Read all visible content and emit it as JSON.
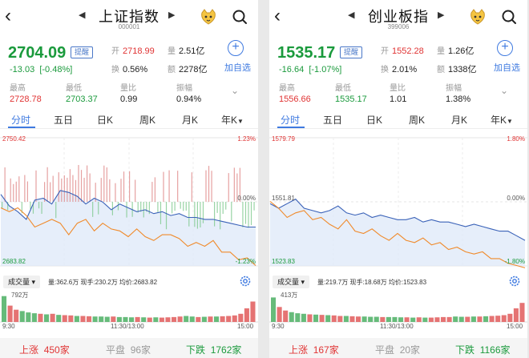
{
  "screens": [
    {
      "title": "上证指数",
      "code": "000001",
      "price": "2704.09",
      "remind": "提醒",
      "change": "-13.03",
      "change_pct": "[-0.48%]",
      "open_label": "开",
      "open": "2718.99",
      "vol_label": "量",
      "vol": "2.51亿",
      "turnover_label": "换",
      "turnover": "0.56%",
      "amount_label": "额",
      "amount": "2278亿",
      "high_label": "最高",
      "high": "2728.78",
      "low_label": "最低",
      "low": "2703.37",
      "ratio_label": "量比",
      "ratio": "0.99",
      "amp_label": "振幅",
      "amp": "0.94%",
      "add_label": "加自选",
      "tabs": [
        "分时",
        "五日",
        "日K",
        "周K",
        "月K",
        "年K"
      ],
      "chart_data": {
        "type": "line",
        "y_top": "2750.42",
        "y_bottom": "2683.82",
        "pct_top": "1.23%",
        "pct_mid": "0.00%",
        "pct_bottom": "-1.23%",
        "ylim": [
          2683.82,
          2750.42
        ],
        "prev_close": 2717.12,
        "series": [
          {
            "values": [
              2721,
              2715,
              2712,
              2708,
              2718,
              2719,
              2716,
              2723,
              2722,
              2720,
              2716,
              2719,
              2717,
              2713,
              2716,
              2714,
              2712,
              2713,
              2711,
              2712,
              2710,
              2711,
              2709,
              2709,
              2708,
              2708,
              2707,
              2706,
              2705,
              2704,
              2704
            ]
          },
          {
            "values": [
              2714,
              2712,
              2714,
              2710,
              2704,
              2706,
              2708,
              2706,
              2700,
              2706,
              2708,
              2702,
              2706,
              2703,
              2702,
              2699,
              2703,
              2699,
              2697,
              2700,
              2700,
              2698,
              2694,
              2696,
              2694,
              2697,
              2691,
              2691,
              2687,
              2688,
              2684
            ]
          }
        ]
      },
      "vol_type": "成交量",
      "vol_info": "量:362.6万  现手:230.2万  均价:2683.82",
      "vol_max": "792万",
      "vol_values": [
        0.95,
        0.6,
        0.45,
        0.4,
        0.35,
        0.32,
        0.3,
        0.28,
        0.3,
        0.26,
        0.25,
        0.24,
        0.22,
        0.22,
        0.21,
        0.2,
        0.2,
        0.19,
        0.2,
        0.18,
        0.18,
        0.17,
        0.18,
        0.17,
        0.16,
        0.17,
        0.16,
        0.17,
        0.18,
        0.2,
        0.22,
        0.2,
        0.18,
        0.19,
        0.2,
        0.2,
        0.21,
        0.22,
        0.24,
        0.3,
        0.5,
        0.75
      ],
      "time_start": "9:30",
      "time_mid": "11:30/13:00",
      "time_end": "15:00",
      "up_label": "上涨",
      "up_count": "450家",
      "flat_label": "平盘",
      "flat_count": "96家",
      "down_label": "下跌",
      "down_count": "1762家"
    },
    {
      "title": "创业板指",
      "code": "399006",
      "price": "1535.17",
      "remind": "提醒",
      "change": "-16.64",
      "change_pct": "[-1.07%]",
      "open_label": "开",
      "open": "1552.28",
      "vol_label": "量",
      "vol": "1.26亿",
      "turnover_label": "换",
      "turnover": "2.01%",
      "amount_label": "额",
      "amount": "1338亿",
      "high_label": "最高",
      "high": "1556.66",
      "low_label": "最低",
      "low": "1535.17",
      "ratio_label": "量比",
      "ratio": "1.01",
      "amp_label": "振幅",
      "amp": "1.38%",
      "add_label": "加自选",
      "tabs": [
        "分时",
        "五日",
        "日K",
        "周K",
        "月K",
        "年K"
      ],
      "chart_data": {
        "type": "line",
        "y_top": "1579.79",
        "y_mid": "1551.81",
        "y_bottom": "1523.83",
        "pct_top": "1.80%",
        "pct_mid": "0.00%",
        "pct_bottom": "-1.80%",
        "ylim": [
          1523.83,
          1579.79
        ],
        "prev_close": 1551.81,
        "series": [
          {
            "values": [
              1551,
              1549,
              1551,
              1553,
              1549,
              1548,
              1547,
              1548,
              1550,
              1547,
              1546,
              1547,
              1545,
              1546,
              1545,
              1544,
              1544,
              1545,
              1543,
              1544,
              1543,
              1543,
              1542,
              1541,
              1542,
              1541,
              1540,
              1539,
              1539,
              1537,
              1535
            ]
          },
          {
            "values": [
              1552,
              1549,
              1545,
              1547,
              1548,
              1544,
              1545,
              1542,
              1540,
              1544,
              1539,
              1538,
              1540,
              1537,
              1535,
              1538,
              1535,
              1534,
              1536,
              1533,
              1534,
              1531,
              1532,
              1530,
              1529,
              1530,
              1527,
              1527,
              1525,
              1524,
              1523
            ]
          }
        ]
      },
      "vol_type": "成交量",
      "vol_info": "量:219.7万  现手:18.68万  均价:1523.83",
      "vol_max": "413万",
      "vol_values": [
        0.9,
        0.55,
        0.42,
        0.36,
        0.32,
        0.3,
        0.28,
        0.27,
        0.26,
        0.25,
        0.24,
        0.22,
        0.22,
        0.21,
        0.2,
        0.2,
        0.19,
        0.19,
        0.18,
        0.18,
        0.18,
        0.17,
        0.17,
        0.16,
        0.17,
        0.16,
        0.16,
        0.17,
        0.18,
        0.18,
        0.2,
        0.19,
        0.19,
        0.2,
        0.2,
        0.21,
        0.22,
        0.23,
        0.25,
        0.3,
        0.5,
        0.7
      ],
      "time_start": "9:30",
      "time_mid": "11:30/13:00",
      "time_end": "15:00",
      "up_label": "上涨",
      "up_count": "167家",
      "flat_label": "平盘",
      "flat_count": "20家",
      "down_label": "下跌",
      "down_count": "1166家"
    }
  ],
  "colors": {
    "up": "#e03434",
    "down": "#1a9a3c",
    "accent": "#3f7ae0",
    "price_line": "#3a62b8",
    "avg_line": "#f08a2a"
  }
}
